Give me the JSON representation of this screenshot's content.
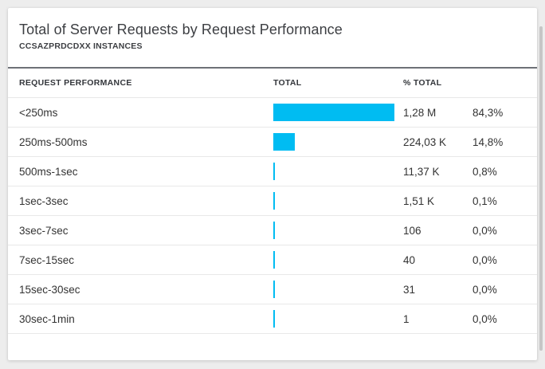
{
  "card": {
    "title": "Total of Server Requests by Request Performance",
    "subtitle": "CCSAZPRDCDXX INSTANCES"
  },
  "table": {
    "columns": [
      "REQUEST PERFORMANCE",
      "TOTAL",
      "% TOTAL"
    ],
    "rows": [
      {
        "label": "<250ms",
        "total": "1,28 M",
        "pct": "84,3%",
        "pct_value": 84.3
      },
      {
        "label": "250ms-500ms",
        "total": "224,03 K",
        "pct": "14,8%",
        "pct_value": 14.8
      },
      {
        "label": "500ms-1sec",
        "total": "11,37 K",
        "pct": "0,8%",
        "pct_value": 0.8
      },
      {
        "label": "1sec-3sec",
        "total": "1,51 K",
        "pct": "0,1%",
        "pct_value": 0.1
      },
      {
        "label": "3sec-7sec",
        "total": "106",
        "pct": "0,0%",
        "pct_value": 0.0
      },
      {
        "label": "7sec-15sec",
        "total": "40",
        "pct": "0,0%",
        "pct_value": 0.0
      },
      {
        "label": "15sec-30sec",
        "total": "31",
        "pct": "0,0%",
        "pct_value": 0.0
      },
      {
        "label": "30sec-1min",
        "total": "1",
        "pct": "0,0%",
        "pct_value": 0.0
      }
    ]
  },
  "colors": {
    "bar": "#00bcf2",
    "header_rule": "#6e7177",
    "row_divider": "#e8e8e8"
  },
  "chart_data": {
    "type": "bar",
    "orientation": "horizontal",
    "title": "Total of Server Requests by Request Performance",
    "subtitle": "CCSAZPRDCDXX INSTANCES",
    "categories": [
      "<250ms",
      "250ms-500ms",
      "500ms-1sec",
      "1sec-3sec",
      "3sec-7sec",
      "7sec-15sec",
      "15sec-30sec",
      "30sec-1min"
    ],
    "series": [
      {
        "name": "Total",
        "values": [
          1280000,
          224030,
          11370,
          1510,
          106,
          40,
          31,
          1
        ],
        "display": [
          "1,28 M",
          "224,03 K",
          "11,37 K",
          "1,51 K",
          "106",
          "40",
          "31",
          "1"
        ]
      },
      {
        "name": "% Total",
        "values": [
          84.3,
          14.8,
          0.8,
          0.1,
          0.0,
          0.0,
          0.0,
          0.0
        ],
        "display": [
          "84,3%",
          "14,8%",
          "0,8%",
          "0,1%",
          "0,0%",
          "0,0%",
          "0,0%",
          "0,0%"
        ]
      }
    ],
    "xlim": [
      0,
      100
    ],
    "legend": false,
    "grid": false
  }
}
